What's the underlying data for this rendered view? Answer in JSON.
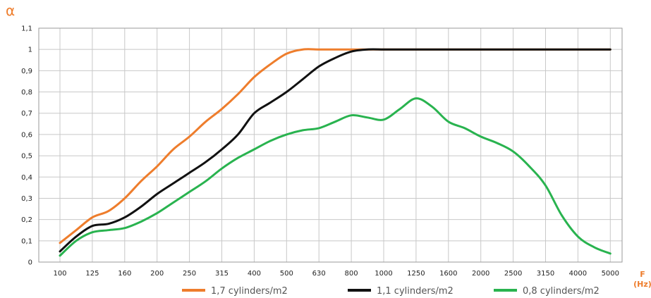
{
  "chart_data": {
    "type": "line",
    "ylabel": "α",
    "xlabel_line1": "F",
    "xlabel_line2": "(Hz)",
    "ylim": [
      0,
      1.1
    ],
    "yticks": [
      "0",
      "0,1",
      "0,2",
      "0,3",
      "0,4",
      "0,5",
      "0,6",
      "0,7",
      "0,8",
      "0,9",
      "1",
      "1,1"
    ],
    "categories": [
      "100",
      "125",
      "160",
      "200",
      "250",
      "315",
      "400",
      "500",
      "630",
      "800",
      "1000",
      "1250",
      "1600",
      "2000",
      "2500",
      "3150",
      "4000",
      "5000"
    ],
    "grid": true,
    "legend_position": "bottom",
    "series": [
      {
        "name": "1,7 cylinders/m2",
        "color": "#ee7d2c",
        "x": [
          0,
          0.5,
          1,
          1.5,
          2,
          2.5,
          3,
          3.5,
          4,
          4.5,
          5,
          5.5,
          6,
          6.5,
          7,
          7.5,
          8,
          8.5,
          9,
          9.5,
          10,
          10.5,
          11,
          11.5,
          12,
          12.5,
          13,
          13.5,
          14,
          14.5,
          15,
          15.5,
          16,
          16.5,
          17
        ],
        "values": [
          0.09,
          0.15,
          0.21,
          0.24,
          0.3,
          0.38,
          0.45,
          0.53,
          0.59,
          0.66,
          0.72,
          0.79,
          0.87,
          0.93,
          0.98,
          1.0,
          1.0,
          1.0,
          1.0,
          1.0,
          1.0,
          1.0,
          1.0,
          1.0,
          1.0,
          1.0,
          1.0,
          1.0,
          1.0,
          1.0,
          1.0,
          1.0,
          1.0,
          1.0,
          1.0
        ]
      },
      {
        "name": "1,1 cylinders/m2",
        "color": "#111111",
        "x": [
          0,
          0.5,
          1,
          1.5,
          2,
          2.5,
          3,
          3.5,
          4,
          4.5,
          5,
          5.5,
          6,
          6.5,
          7,
          7.5,
          8,
          8.5,
          9,
          9.5,
          10,
          10.5,
          11,
          11.5,
          12,
          12.5,
          13,
          13.5,
          14,
          14.5,
          15,
          15.5,
          16,
          16.5,
          17
        ],
        "values": [
          0.05,
          0.12,
          0.17,
          0.18,
          0.21,
          0.26,
          0.32,
          0.37,
          0.42,
          0.47,
          0.53,
          0.6,
          0.7,
          0.75,
          0.8,
          0.86,
          0.92,
          0.96,
          0.99,
          1.0,
          1.0,
          1.0,
          1.0,
          1.0,
          1.0,
          1.0,
          1.0,
          1.0,
          1.0,
          1.0,
          1.0,
          1.0,
          1.0,
          1.0,
          1.0
        ]
      },
      {
        "name": "0,8 cylinders/m2",
        "color": "#29b34f",
        "x": [
          0,
          0.5,
          1,
          1.5,
          2,
          2.5,
          3,
          3.5,
          4,
          4.5,
          5,
          5.5,
          6,
          6.5,
          7,
          7.5,
          8,
          8.5,
          9,
          9.5,
          10,
          10.5,
          11,
          11.5,
          12,
          12.5,
          13,
          13.5,
          14,
          14.5,
          15,
          15.5,
          16,
          16.5,
          17
        ],
        "values": [
          0.03,
          0.1,
          0.14,
          0.15,
          0.16,
          0.19,
          0.23,
          0.28,
          0.33,
          0.38,
          0.44,
          0.49,
          0.53,
          0.57,
          0.6,
          0.62,
          0.63,
          0.66,
          0.69,
          0.68,
          0.67,
          0.72,
          0.77,
          0.73,
          0.66,
          0.63,
          0.59,
          0.56,
          0.52,
          0.45,
          0.36,
          0.22,
          0.12,
          0.07,
          0.04
        ]
      }
    ]
  }
}
